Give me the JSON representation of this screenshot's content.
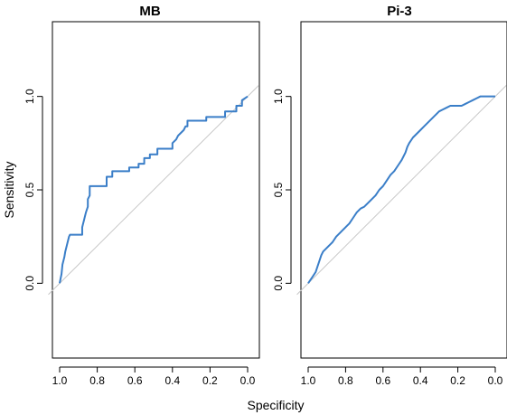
{
  "chart_data": [
    {
      "type": "line",
      "title": "MB",
      "xlabel": "Specificity",
      "ylabel": "Sensitivity",
      "x_reversed": true,
      "xlim": [
        1.0,
        0.0
      ],
      "ylim": [
        -0.4,
        1.4
      ],
      "xticks": [
        1.0,
        0.8,
        0.6,
        0.4,
        0.2,
        0.0
      ],
      "xtick_labels": [
        "1.0",
        "0.8",
        "0.6",
        "0.4",
        "0.2",
        "0.0"
      ],
      "yticks": [
        0.0,
        0.5,
        1.0
      ],
      "ytick_labels": [
        "0.0",
        "0.5",
        "1.0"
      ],
      "reference_line": {
        "from": [
          1.0,
          0.0
        ],
        "to": [
          0.0,
          1.0
        ],
        "color": "#c8c8c8"
      },
      "series": [
        {
          "color": "#3a7ec8",
          "x": [
            1.0,
            0.99,
            0.985,
            0.98,
            0.975,
            0.97,
            0.965,
            0.96,
            0.955,
            0.95,
            0.945,
            0.94,
            0.94,
            0.88,
            0.88,
            0.87,
            0.86,
            0.85,
            0.85,
            0.84,
            0.84,
            0.75,
            0.75,
            0.72,
            0.72,
            0.63,
            0.63,
            0.58,
            0.58,
            0.55,
            0.55,
            0.52,
            0.52,
            0.48,
            0.48,
            0.4,
            0.4,
            0.38,
            0.37,
            0.36,
            0.34,
            0.33,
            0.32,
            0.32,
            0.22,
            0.22,
            0.12,
            0.12,
            0.06,
            0.06,
            0.03,
            0.03,
            0.0
          ],
          "y": [
            0.0,
            0.05,
            0.1,
            0.12,
            0.14,
            0.17,
            0.19,
            0.21,
            0.23,
            0.25,
            0.26,
            0.26,
            0.26,
            0.26,
            0.3,
            0.34,
            0.38,
            0.41,
            0.45,
            0.47,
            0.52,
            0.52,
            0.57,
            0.57,
            0.6,
            0.6,
            0.62,
            0.62,
            0.64,
            0.64,
            0.67,
            0.67,
            0.69,
            0.69,
            0.72,
            0.72,
            0.75,
            0.77,
            0.79,
            0.8,
            0.82,
            0.84,
            0.84,
            0.87,
            0.87,
            0.89,
            0.89,
            0.92,
            0.92,
            0.95,
            0.95,
            0.98,
            1.0
          ]
        }
      ]
    },
    {
      "type": "line",
      "title": "Pi-3",
      "xlabel": "Specificity",
      "ylabel": "Sensitivity",
      "x_reversed": true,
      "xlim": [
        1.0,
        0.0
      ],
      "ylim": [
        -0.4,
        1.4
      ],
      "xticks": [
        1.0,
        0.8,
        0.6,
        0.4,
        0.2,
        0.0
      ],
      "xtick_labels": [
        "1.0",
        "0.8",
        "0.6",
        "0.4",
        "0.2",
        "0.0"
      ],
      "yticks": [
        0.0,
        0.5,
        1.0
      ],
      "ytick_labels": [
        "0.0",
        "0.5",
        "1.0"
      ],
      "reference_line": {
        "from": [
          1.0,
          0.0
        ],
        "to": [
          0.0,
          1.0
        ],
        "color": "#c8c8c8"
      },
      "series": [
        {
          "color": "#3a7ec8",
          "x": [
            1.0,
            0.98,
            0.96,
            0.95,
            0.94,
            0.93,
            0.92,
            0.9,
            0.88,
            0.87,
            0.85,
            0.83,
            0.82,
            0.8,
            0.78,
            0.76,
            0.74,
            0.72,
            0.7,
            0.68,
            0.66,
            0.64,
            0.62,
            0.6,
            0.58,
            0.56,
            0.54,
            0.52,
            0.5,
            0.48,
            0.47,
            0.46,
            0.44,
            0.42,
            0.4,
            0.38,
            0.36,
            0.34,
            0.32,
            0.3,
            0.28,
            0.26,
            0.24,
            0.22,
            0.2,
            0.18,
            0.16,
            0.14,
            0.12,
            0.1,
            0.08,
            0.06,
            0.04,
            0.02,
            0.0
          ],
          "y": [
            0.0,
            0.03,
            0.06,
            0.09,
            0.12,
            0.15,
            0.17,
            0.19,
            0.21,
            0.22,
            0.25,
            0.27,
            0.28,
            0.3,
            0.32,
            0.35,
            0.38,
            0.4,
            0.41,
            0.43,
            0.45,
            0.47,
            0.5,
            0.52,
            0.55,
            0.58,
            0.6,
            0.63,
            0.66,
            0.7,
            0.73,
            0.75,
            0.78,
            0.8,
            0.82,
            0.84,
            0.86,
            0.88,
            0.9,
            0.92,
            0.93,
            0.94,
            0.95,
            0.95,
            0.95,
            0.95,
            0.96,
            0.97,
            0.98,
            0.99,
            1.0,
            1.0,
            1.0,
            1.0,
            1.0
          ]
        }
      ]
    }
  ]
}
